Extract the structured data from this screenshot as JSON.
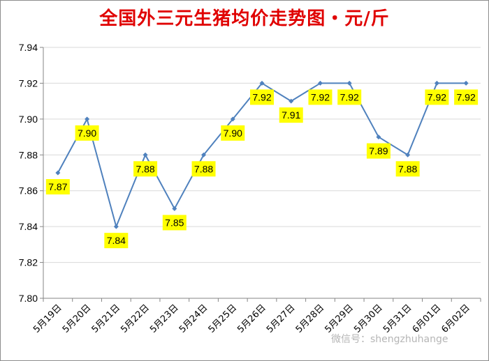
{
  "chart_data": {
    "type": "line",
    "title": "全国外三元生猪均价走势图・元/斤",
    "categories": [
      "5月19日",
      "5月20日",
      "5月21日",
      "5月22日",
      "5月23日",
      "5月24日",
      "5月25日",
      "5月26日",
      "5月27日",
      "5月28日",
      "5月29日",
      "5月30日",
      "5月31日",
      "6月01日",
      "6月02日"
    ],
    "values": [
      7.87,
      7.9,
      7.84,
      7.88,
      7.85,
      7.88,
      7.9,
      7.92,
      7.91,
      7.92,
      7.92,
      7.89,
      7.88,
      7.92,
      7.92
    ],
    "data_labels": [
      "7.87",
      "7.90",
      "7.84",
      "7.88",
      "7.85",
      "7.88",
      "7.90",
      "7.92",
      "7.91",
      "7.92",
      "7.92",
      "7.89",
      "7.88",
      "7.92",
      "7.92"
    ],
    "y_ticks": [
      "7.80",
      "7.82",
      "7.84",
      "7.86",
      "7.88",
      "7.90",
      "7.92",
      "7.94"
    ],
    "ylim": [
      7.8,
      7.94
    ],
    "grid": true,
    "xlabel": "",
    "ylabel": "",
    "colors": {
      "line": "#4f81bd",
      "label_bg": "#ffff00",
      "title": "#e00000",
      "grid": "#d9d9d9"
    }
  },
  "watermark": "微信号：shengzhuhange"
}
